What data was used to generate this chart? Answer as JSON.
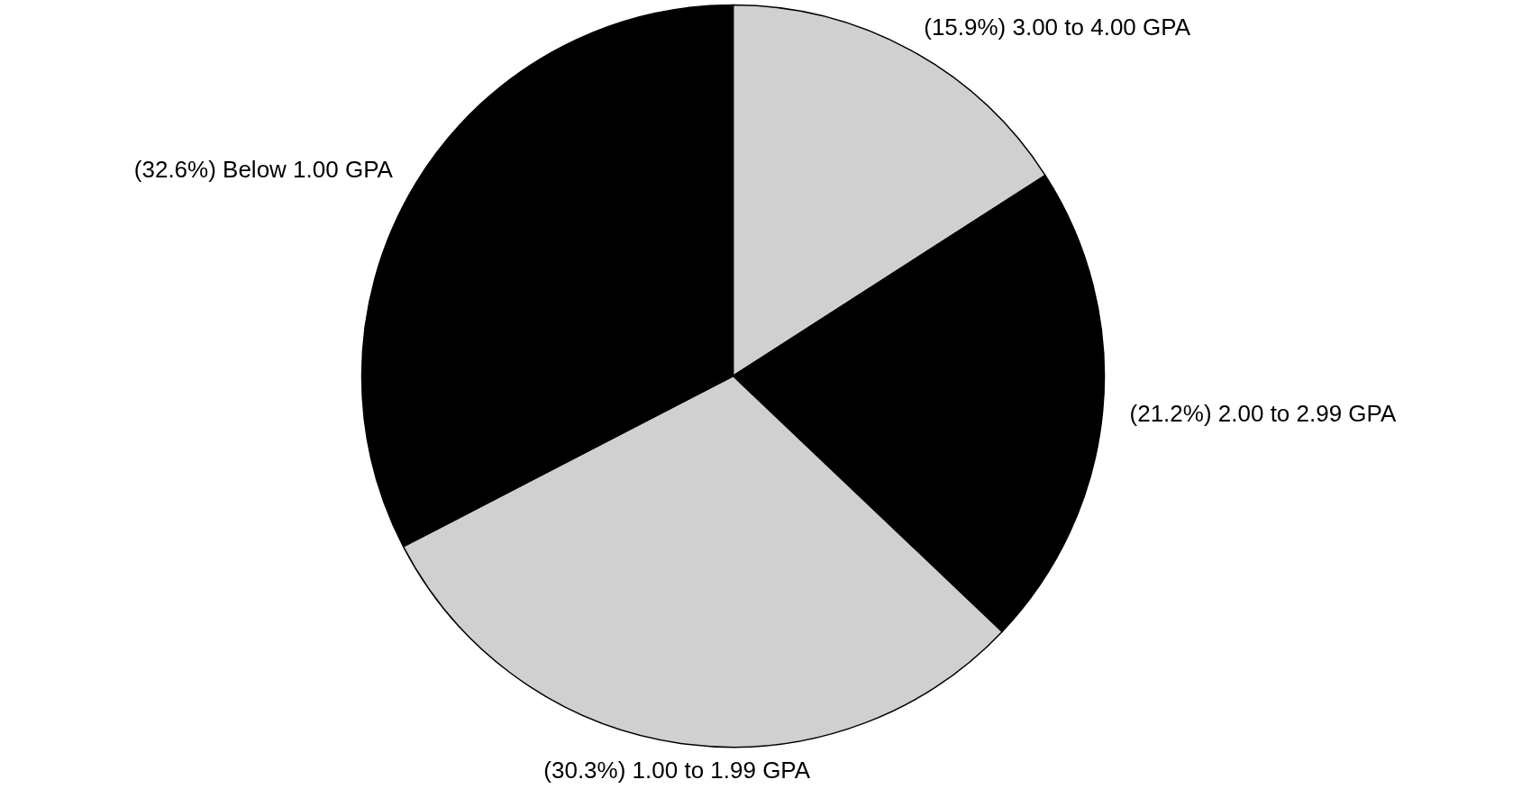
{
  "chart_data": {
    "type": "pie",
    "categories": [
      "3.00 to 4.00 GPA",
      "2.00 to 2.99 GPA",
      "1.00 to 1.99 GPA",
      "Below 1.00 GPA"
    ],
    "values": [
      15.9,
      21.2,
      30.3,
      32.6
    ],
    "colors": [
      "#d0d0d0",
      "#000000",
      "#d0d0d0",
      "#000000"
    ],
    "value_labels": [
      "(15.9%)",
      "(21.2%)",
      "(30.3%)",
      "(32.6%)"
    ],
    "legend": false
  }
}
